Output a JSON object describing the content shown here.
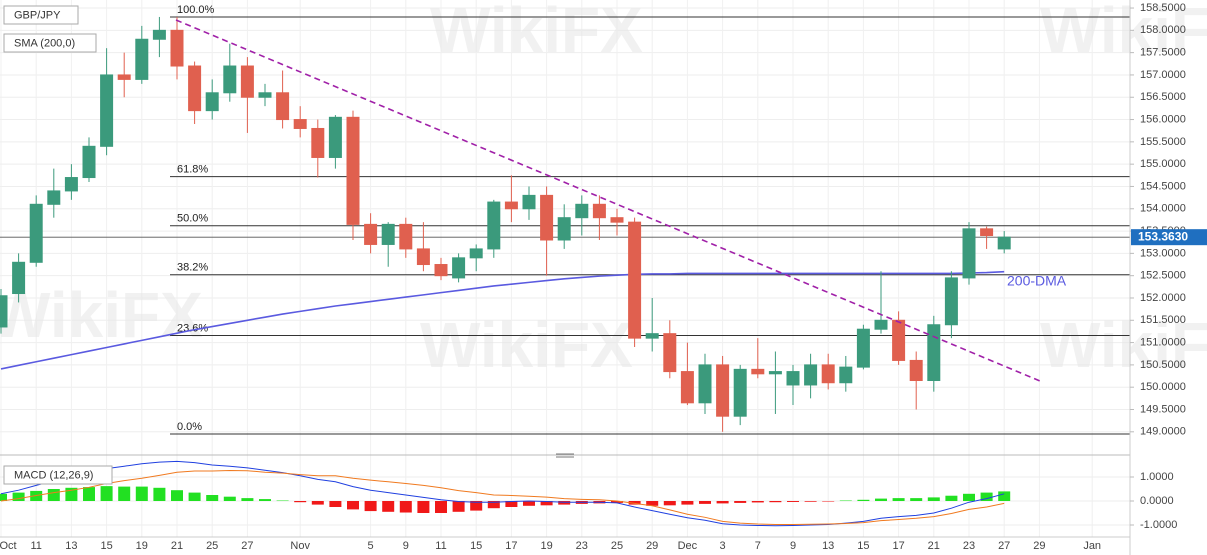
{
  "chart_data": [
    {
      "type": "candlestick",
      "title": "GBP/JPY",
      "categories": [
        "Oct",
        null,
        "11",
        null,
        "13",
        null,
        "15",
        null,
        "19",
        null,
        "21",
        null,
        "25",
        null,
        "27",
        null,
        null,
        "Nov",
        null,
        null,
        null,
        "5",
        null,
        "9",
        null,
        "11",
        null,
        "15",
        null,
        "17",
        null,
        "19",
        null,
        "23",
        null,
        "25",
        null,
        "29",
        null,
        "Dec",
        null,
        "3",
        null,
        "7",
        null,
        "9",
        null,
        "13",
        null,
        "15",
        null,
        "17",
        null,
        "21",
        null,
        "23",
        null,
        "27"
      ],
      "future_categories": [
        "29",
        "Jan"
      ],
      "open": [
        151.35,
        152.1,
        152.8,
        154.1,
        154.4,
        154.7,
        155.4,
        157.0,
        156.9,
        157.8,
        158.0,
        157.2,
        156.2,
        156.6,
        157.2,
        156.5,
        156.6,
        156.0,
        155.8,
        155.15,
        156.05,
        153.65,
        153.2,
        153.65,
        153.1,
        152.75,
        152.45,
        152.9,
        153.1,
        154.15,
        154.0,
        154.3,
        153.3,
        153.8,
        154.1,
        153.8,
        153.7,
        151.1,
        151.2,
        150.35,
        149.65,
        150.5,
        149.35,
        150.4,
        150.3,
        150.05,
        150.05,
        150.5,
        150.1,
        150.45,
        151.3,
        151.5,
        150.6,
        150.15,
        151.4,
        152.45,
        153.55,
        153.1
      ],
      "high": [
        152.2,
        153.0,
        154.3,
        154.9,
        155.0,
        155.6,
        157.6,
        157.5,
        158.1,
        158.3,
        158.3,
        157.3,
        156.9,
        157.7,
        157.4,
        156.8,
        157.1,
        156.3,
        156.0,
        156.1,
        156.2,
        153.9,
        153.7,
        153.8,
        153.7,
        152.9,
        153.0,
        153.2,
        154.2,
        154.75,
        154.5,
        154.5,
        154.1,
        154.3,
        154.3,
        154.0,
        153.8,
        152.0,
        151.5,
        151.0,
        150.75,
        150.7,
        150.5,
        151.1,
        150.8,
        150.5,
        150.75,
        150.75,
        150.7,
        151.4,
        152.6,
        151.7,
        150.8,
        151.6,
        152.6,
        153.7,
        153.6,
        153.5
      ],
      "low": [
        151.2,
        151.9,
        152.7,
        153.8,
        154.2,
        154.6,
        155.2,
        156.5,
        156.8,
        157.4,
        156.9,
        155.9,
        156.0,
        156.4,
        155.7,
        156.3,
        155.8,
        155.6,
        154.7,
        154.9,
        153.3,
        153.0,
        152.7,
        152.9,
        152.6,
        152.4,
        152.35,
        152.6,
        152.9,
        153.7,
        153.75,
        152.5,
        153.1,
        153.4,
        153.3,
        153.4,
        150.9,
        150.8,
        150.2,
        149.6,
        149.4,
        149.0,
        149.15,
        150.2,
        149.4,
        149.6,
        149.75,
        149.95,
        149.9,
        150.4,
        151.2,
        150.5,
        149.5,
        149.9,
        151.1,
        152.3,
        153.1,
        153.0
      ],
      "close": [
        152.05,
        152.8,
        154.1,
        154.4,
        154.7,
        155.4,
        157.0,
        156.9,
        157.8,
        158.0,
        157.2,
        156.2,
        156.6,
        157.2,
        156.5,
        156.6,
        156.0,
        155.8,
        155.15,
        156.05,
        153.65,
        153.2,
        153.65,
        153.1,
        152.75,
        152.5,
        152.9,
        153.1,
        154.15,
        154.0,
        154.3,
        153.3,
        153.8,
        154.1,
        153.8,
        153.7,
        151.1,
        151.2,
        150.35,
        149.65,
        150.5,
        149.35,
        150.4,
        150.3,
        150.35,
        150.35,
        150.5,
        150.1,
        150.45,
        151.3,
        151.5,
        150.6,
        150.15,
        151.4,
        152.45,
        153.55,
        153.4,
        153.363
      ],
      "up_color": "#3b9a7c",
      "down_color": "#e0604f",
      "ylim": [
        148.48,
        158.68
      ],
      "yticks": [
        {
          "value": 149,
          "label": "149.0000"
        },
        {
          "value": 149.5,
          "label": "149.5000"
        },
        {
          "value": 150,
          "label": "150.0000"
        },
        {
          "value": 150.5,
          "label": "150.5000"
        },
        {
          "value": 151,
          "label": "151.0000"
        },
        {
          "value": 151.5,
          "label": "151.5000"
        },
        {
          "value": 152,
          "label": "152.0000"
        },
        {
          "value": 152.5,
          "label": "152.5000"
        },
        {
          "value": 153,
          "label": "153.0000"
        },
        {
          "value": 153.5,
          "label": "153.5000"
        },
        {
          "value": 154,
          "label": "154.0000"
        },
        {
          "value": 154.5,
          "label": "154.5000"
        },
        {
          "value": 155,
          "label": "155.0000"
        },
        {
          "value": 155.5,
          "label": "155.5000"
        },
        {
          "value": 156,
          "label": "156.0000"
        },
        {
          "value": 156.5,
          "label": "156.5000"
        },
        {
          "value": 157,
          "label": "157.0000"
        },
        {
          "value": 157.5,
          "label": "157.5000"
        },
        {
          "value": 158,
          "label": "158.0000"
        },
        {
          "value": 158.5,
          "label": "158.5000"
        }
      ],
      "grid": true,
      "last_price": {
        "value": 153.363,
        "label": "153.3630",
        "color": "#1f6fc0"
      },
      "sma": {
        "name": "SMA (200,0)",
        "label": "200-DMA",
        "color": "#5a5ae0",
        "values": [
          150.41,
          150.49,
          150.57,
          150.65,
          150.73,
          150.81,
          150.89,
          150.97,
          151.05,
          151.13,
          151.21,
          151.29,
          151.36,
          151.43,
          151.5,
          151.57,
          151.64,
          151.7,
          151.76,
          151.82,
          151.87,
          151.92,
          151.97,
          152.02,
          152.07,
          152.12,
          152.17,
          152.22,
          152.27,
          152.31,
          152.35,
          152.39,
          152.43,
          152.46,
          152.49,
          152.51,
          152.53,
          152.54,
          152.54,
          152.55,
          152.55,
          152.55,
          152.55,
          152.55,
          152.55,
          152.55,
          152.55,
          152.55,
          152.55,
          152.55,
          152.55,
          152.55,
          152.55,
          152.55,
          152.55,
          152.56,
          152.57,
          152.59
        ]
      },
      "fib_levels": [
        {
          "label": "100.0%",
          "value": 158.3
        },
        {
          "label": "61.8%",
          "value": 154.72
        },
        {
          "label": "50.0%",
          "value": 153.62
        },
        {
          "label": "38.2%",
          "value": 152.52
        },
        {
          "label": "23.6%",
          "value": 151.16
        },
        {
          "label": "0.0%",
          "value": 148.95
        }
      ],
      "watermark": "WikiFX"
    },
    {
      "type": "macd",
      "title": "MACD (12,26,9)",
      "histogram": [
        0.3,
        0.35,
        0.42,
        0.5,
        0.55,
        0.58,
        0.62,
        0.6,
        0.6,
        0.55,
        0.45,
        0.35,
        0.25,
        0.18,
        0.12,
        0.08,
        0.02,
        -0.05,
        -0.15,
        -0.25,
        -0.35,
        -0.42,
        -0.45,
        -0.48,
        -0.5,
        -0.5,
        -0.45,
        -0.4,
        -0.3,
        -0.25,
        -0.2,
        -0.18,
        -0.15,
        -0.12,
        -0.1,
        -0.08,
        -0.15,
        -0.2,
        -0.18,
        -0.15,
        -0.12,
        -0.1,
        -0.08,
        -0.06,
        -0.05,
        -0.04,
        -0.03,
        -0.02,
        0.02,
        0.05,
        0.1,
        0.12,
        0.12,
        0.15,
        0.22,
        0.3,
        0.35,
        0.4
      ],
      "series": [
        {
          "name": "MACD",
          "color": "#2040e0",
          "values": [
            0.3,
            0.45,
            0.65,
            0.85,
            1.0,
            1.15,
            1.35,
            1.45,
            1.55,
            1.62,
            1.65,
            1.6,
            1.5,
            1.45,
            1.38,
            1.28,
            1.18,
            1.05,
            0.9,
            0.8,
            0.6,
            0.45,
            0.35,
            0.25,
            0.15,
            0.05,
            -0.02,
            -0.05,
            -0.05,
            -0.02,
            0,
            -0.02,
            -0.05,
            -0.05,
            -0.05,
            -0.08,
            -0.25,
            -0.4,
            -0.55,
            -0.7,
            -0.8,
            -0.95,
            -1.0,
            -1.02,
            -1.03,
            -1.02,
            -1.0,
            -0.98,
            -0.92,
            -0.85,
            -0.72,
            -0.65,
            -0.6,
            -0.5,
            -0.3,
            -0.05,
            0.1,
            0.3
          ]
        },
        {
          "name": "Signal",
          "color": "#f07a20",
          "values": [
            0.0,
            0.1,
            0.23,
            0.35,
            0.45,
            0.57,
            0.73,
            0.85,
            0.95,
            1.07,
            1.2,
            1.25,
            1.25,
            1.27,
            1.26,
            1.2,
            1.16,
            1.1,
            1.05,
            1.05,
            0.95,
            0.87,
            0.8,
            0.73,
            0.65,
            0.55,
            0.43,
            0.35,
            0.25,
            0.23,
            0.2,
            0.16,
            0.1,
            0.07,
            0.05,
            0.0,
            -0.1,
            -0.2,
            -0.37,
            -0.55,
            -0.68,
            -0.85,
            -0.92,
            -0.96,
            -0.98,
            -0.98,
            -0.97,
            -0.96,
            -0.94,
            -0.9,
            -0.82,
            -0.77,
            -0.72,
            -0.65,
            -0.52,
            -0.35,
            -0.25,
            -0.1
          ]
        }
      ],
      "pos_color": "#22e022",
      "neg_color": "#f01818",
      "ylim": [
        -1.5,
        1.625
      ],
      "yticks": [
        {
          "value": 1,
          "label": "1.0000"
        },
        {
          "value": 0,
          "label": "0.0000"
        },
        {
          "value": -1,
          "label": "-1.0000"
        }
      ]
    }
  ]
}
